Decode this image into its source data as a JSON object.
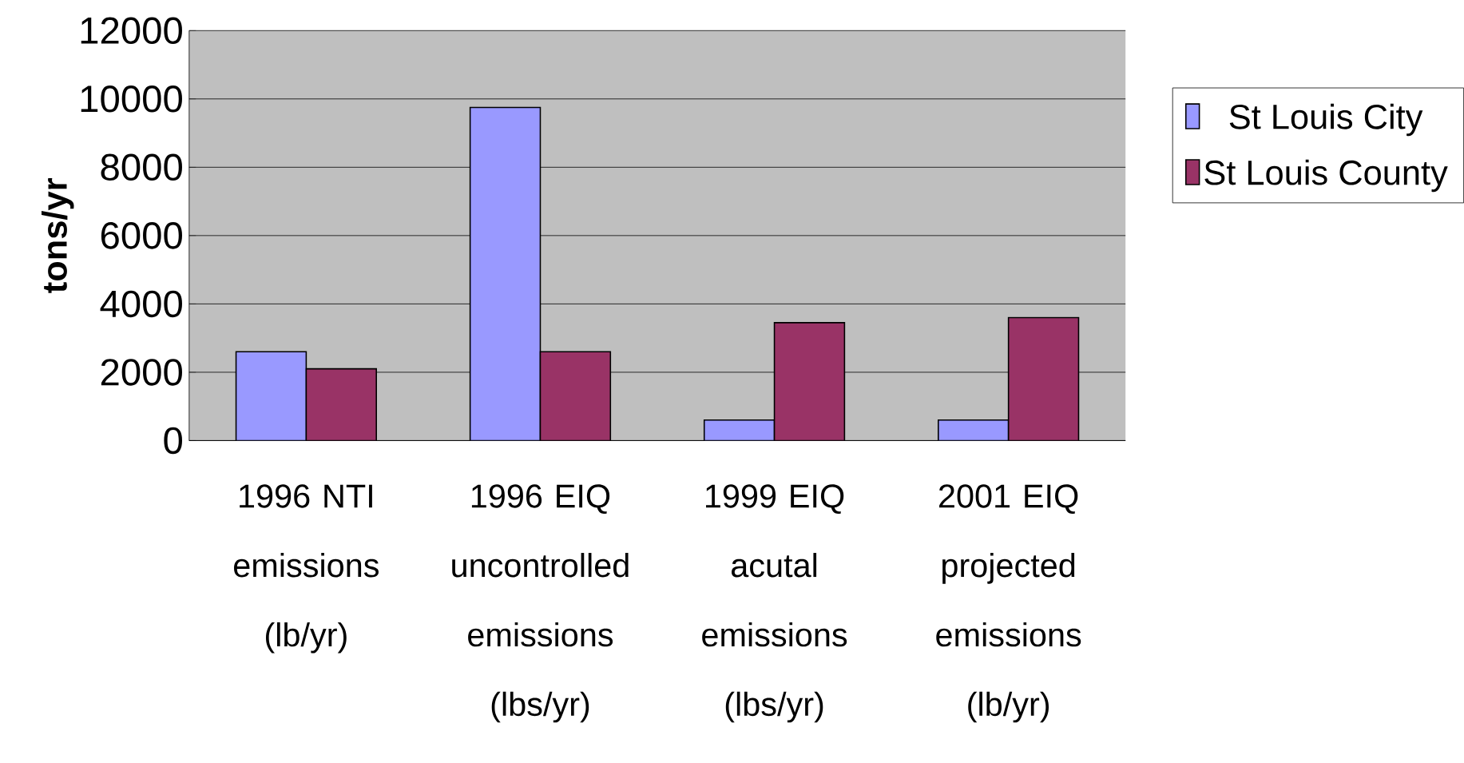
{
  "chart_data": {
    "type": "bar",
    "ylabel": "tons/yr",
    "categories": [
      "1996 NTI emissions (lb/yr)",
      "1996 EIQ uncontrolled emissions (lbs/yr)",
      "1999 EIQ acutal emissions (lbs/yr)",
      "2001 EIQ projected emissions (lb/yr)"
    ],
    "series": [
      {
        "name": "St Louis City",
        "color": "#9999ff",
        "values": [
          2600,
          9750,
          600,
          600
        ]
      },
      {
        "name": "St Louis County",
        "color": "#993366",
        "values": [
          2100,
          2600,
          3450,
          3600
        ]
      }
    ],
    "ylim": [
      0,
      12000
    ],
    "yticks": [
      0,
      2000,
      4000,
      6000,
      8000,
      10000,
      12000
    ],
    "grid": "y",
    "legend": "right"
  }
}
